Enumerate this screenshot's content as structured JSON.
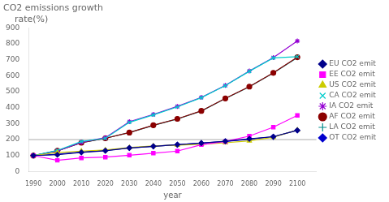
{
  "chart_data": {
    "type": "line",
    "title": "CO2 emissions growth",
    "subtitle": "    rate(%)",
    "xlabel": "year",
    "x": [
      1990,
      2000,
      2010,
      2020,
      2030,
      2040,
      2050,
      2060,
      2070,
      2080,
      2090,
      2100
    ],
    "series": [
      {
        "name": "EU CO2 emit",
        "color": "#00008B",
        "marker": "diamond",
        "values": [
          100,
          105,
          120,
          130,
          148,
          158,
          168,
          178,
          190,
          205,
          218,
          258
        ]
      },
      {
        "name": "EE CO2 emit",
        "color": "#FF00FF",
        "marker": "square",
        "values": [
          100,
          70,
          85,
          90,
          102,
          115,
          128,
          168,
          188,
          222,
          278,
          352
        ]
      },
      {
        "name": "US CO2 emit",
        "color": "#CCCC00",
        "marker": "triangle",
        "values": [
          100,
          118,
          128,
          135,
          150,
          160,
          165,
          170,
          180,
          192,
          215,
          260
        ]
      },
      {
        "name": "CA CO2 emit",
        "color": "#00CCCC",
        "marker": "x",
        "values": [
          100,
          132,
          188,
          208,
          308,
          355,
          405,
          463,
          538,
          628,
          712,
          720
        ]
      },
      {
        "name": "IA CO2 emit",
        "color": "#9400D3",
        "marker": "star",
        "values": [
          100,
          128,
          183,
          212,
          312,
          358,
          408,
          465,
          540,
          630,
          714,
          818
        ]
      },
      {
        "name": "AF CO2 emit",
        "color": "#8B0000",
        "marker": "circle",
        "values": [
          100,
          130,
          180,
          208,
          244,
          290,
          330,
          380,
          458,
          532,
          618,
          716
        ]
      },
      {
        "name": "LA CO2 emit",
        "color": "#008B8B",
        "marker": "plus",
        "values": [
          100,
          130,
          180,
          208,
          244,
          289,
          329,
          379,
          457,
          531,
          617,
          714
        ]
      },
      {
        "name": "OT CO2 emit",
        "color": "#0000CD",
        "marker": "diamond",
        "values": [
          100,
          108,
          122,
          132,
          148,
          158,
          168,
          178,
          188,
          202,
          218,
          258
        ]
      }
    ],
    "xlim": [
      1988,
      2108
    ],
    "xticks": [
      1990,
      2000,
      2010,
      2020,
      2030,
      2040,
      2050,
      2060,
      2070,
      2080,
      2090,
      2100
    ],
    "ylim": [
      0,
      900
    ],
    "yticks": [
      0,
      100,
      200,
      300,
      400,
      500,
      600,
      700,
      800,
      900
    ],
    "hline": 200,
    "grid": false,
    "legend": "right"
  }
}
